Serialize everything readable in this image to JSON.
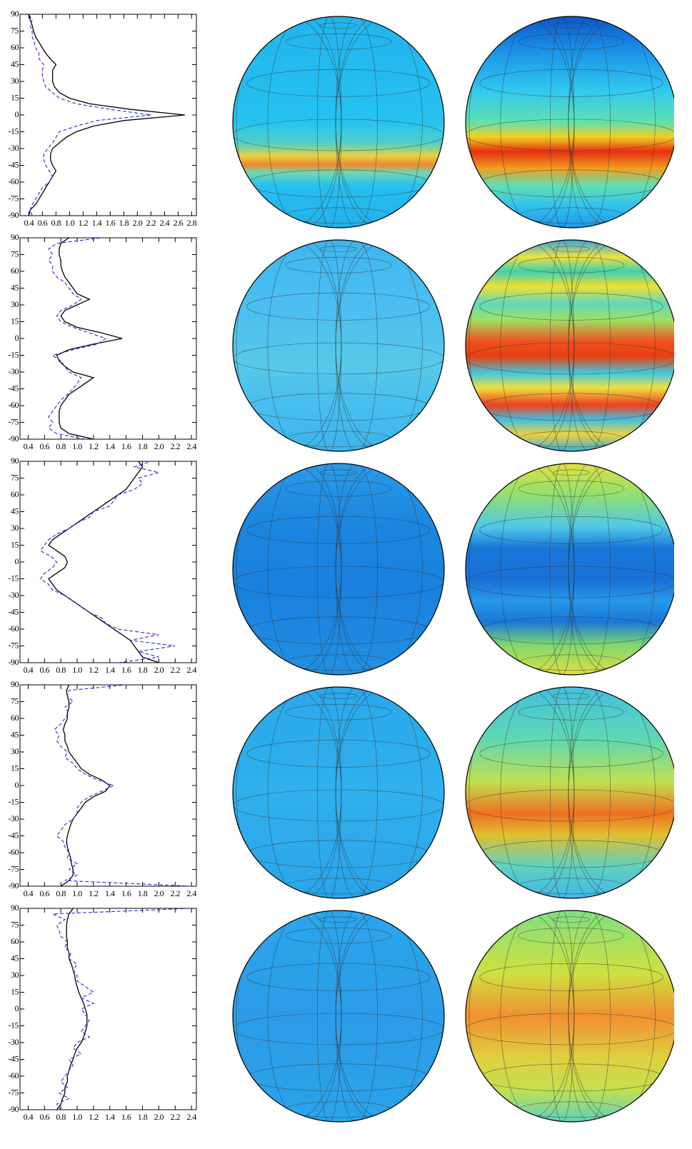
{
  "chart_data": [
    {
      "type": "line",
      "xlim": [
        0.27,
        2.87
      ],
      "ylim": [
        -90,
        90
      ],
      "xticks": [
        0.4,
        0.6,
        0.8,
        {
          "value": 1,
          "label": "1.0"
        },
        1.2,
        1.4,
        1.6,
        1.8,
        {
          "value": 2,
          "label": "2.0"
        },
        2.2,
        2.4,
        2.6,
        2.8
      ],
      "yticks": [
        -90,
        -75,
        -60,
        -45,
        -30,
        -15,
        0,
        15,
        30,
        45,
        60,
        75,
        90
      ],
      "y": [
        -90,
        -85,
        -80,
        -75,
        -70,
        -65,
        -60,
        -55,
        -50,
        -45,
        -40,
        -35,
        -30,
        -25,
        -20,
        -15,
        -10,
        -5,
        0,
        5,
        10,
        15,
        20,
        25,
        30,
        35,
        40,
        45,
        50,
        55,
        60,
        65,
        70,
        75,
        80,
        85,
        90
      ],
      "series": [
        {
          "color": "#000000",
          "linestyle": "solid",
          "values": [
            0.4,
            0.42,
            0.5,
            0.55,
            0.6,
            0.65,
            0.7,
            0.75,
            0.8,
            0.75,
            0.72,
            0.72,
            0.75,
            0.85,
            0.95,
            1.1,
            1.35,
            1.8,
            2.7,
            1.9,
            1.3,
            1.0,
            0.85,
            0.78,
            0.75,
            0.75,
            0.75,
            0.8,
            0.72,
            0.65,
            0.6,
            0.55,
            0.5,
            0.47,
            0.45,
            0.42,
            0.4
          ]
        },
        {
          "color": "#1f2fd0",
          "linestyle": "dashed",
          "values": [
            0.45,
            0.42,
            0.45,
            0.5,
            0.55,
            0.6,
            0.7,
            0.75,
            0.7,
            0.65,
            0.62,
            0.62,
            0.68,
            0.75,
            0.8,
            0.85,
            1.1,
            1.4,
            2.2,
            1.6,
            1.1,
            0.85,
            0.75,
            0.65,
            0.62,
            0.6,
            0.6,
            0.62,
            0.55,
            0.55,
            0.5,
            0.48,
            0.45,
            0.45,
            0.42,
            0.45,
            0.4
          ]
        }
      ]
    },
    {
      "type": "line",
      "xlim": [
        0.3,
        2.46
      ],
      "ylim": [
        -90,
        90
      ],
      "xticks": [
        0.4,
        0.6,
        0.8,
        {
          "value": 1,
          "label": "1.0"
        },
        1.2,
        1.4,
        1.6,
        1.8,
        {
          "value": 2,
          "label": "2.0"
        },
        2.2,
        2.4
      ],
      "yticks": [
        -90,
        -75,
        -60,
        -45,
        -30,
        -15,
        0,
        15,
        30,
        45,
        60,
        75,
        90
      ],
      "y": [
        -90,
        -85,
        -80,
        -75,
        -70,
        -65,
        -60,
        -55,
        -50,
        -45,
        -40,
        -35,
        -30,
        -25,
        -20,
        -15,
        -10,
        -5,
        0,
        5,
        10,
        15,
        20,
        25,
        30,
        35,
        40,
        45,
        50,
        55,
        60,
        65,
        70,
        75,
        80,
        85,
        90
      ],
      "series": [
        {
          "color": "#000000",
          "linestyle": "solid",
          "values": [
            1.2,
            0.9,
            0.8,
            0.78,
            0.78,
            0.78,
            0.8,
            0.85,
            0.9,
            1.0,
            1.1,
            1.2,
            0.95,
            0.85,
            0.78,
            0.75,
            0.9,
            1.2,
            1.55,
            1.3,
            1.0,
            0.85,
            0.8,
            0.85,
            1.0,
            1.15,
            1.0,
            0.95,
            0.9,
            0.85,
            0.82,
            0.8,
            0.8,
            0.78,
            0.78,
            0.8,
            0.9
          ]
        },
        {
          "color": "#1f2fd0",
          "linestyle": "dashed",
          "values": [
            1.1,
            0.75,
            0.65,
            0.7,
            0.65,
            0.7,
            0.75,
            0.8,
            0.88,
            0.95,
            1.0,
            1.05,
            0.9,
            0.85,
            0.8,
            0.7,
            0.95,
            1.25,
            1.35,
            1.15,
            0.95,
            0.8,
            0.75,
            0.8,
            0.95,
            1.05,
            0.95,
            0.9,
            0.85,
            0.75,
            0.7,
            0.7,
            0.65,
            0.7,
            0.65,
            0.75,
            1.3
          ]
        }
      ]
    },
    {
      "type": "line",
      "xlim": [
        0.3,
        2.46
      ],
      "ylim": [
        -90,
        90
      ],
      "xticks": [
        0.4,
        0.6,
        0.8,
        {
          "value": 1,
          "label": "1.0"
        },
        1.2,
        1.4,
        1.6,
        1.8,
        {
          "value": 2,
          "label": "2.0"
        },
        2.2,
        2.4
      ],
      "yticks": [
        -90,
        -75,
        -60,
        -45,
        -30,
        -15,
        0,
        15,
        30,
        45,
        60,
        75,
        90
      ],
      "y": [
        -90,
        -85,
        -80,
        -75,
        -70,
        -65,
        -60,
        -55,
        -50,
        -45,
        -40,
        -35,
        -30,
        -25,
        -20,
        -15,
        -10,
        -5,
        0,
        5,
        10,
        15,
        20,
        25,
        30,
        35,
        40,
        45,
        50,
        55,
        60,
        65,
        70,
        75,
        80,
        85,
        90
      ],
      "series": [
        {
          "color": "#000000",
          "linestyle": "solid",
          "values": [
            2.0,
            1.8,
            1.75,
            1.7,
            1.65,
            1.55,
            1.45,
            1.35,
            1.25,
            1.15,
            1.05,
            0.95,
            0.85,
            0.75,
            0.7,
            0.65,
            0.75,
            0.85,
            0.88,
            0.85,
            0.75,
            0.65,
            0.7,
            0.8,
            0.9,
            1.0,
            1.1,
            1.2,
            1.3,
            1.4,
            1.5,
            1.6,
            1.65,
            1.7,
            1.75,
            1.8,
            1.75
          ]
        },
        {
          "color": "#1f2fd0",
          "linestyle": "dashed",
          "values": [
            1.5,
            2.0,
            1.75,
            2.2,
            1.65,
            2.0,
            1.5,
            1.35,
            1.3,
            1.15,
            1.05,
            0.95,
            0.85,
            0.7,
            0.65,
            0.55,
            0.6,
            0.7,
            0.75,
            0.68,
            0.55,
            0.6,
            0.65,
            0.75,
            0.9,
            1.0,
            1.15,
            1.2,
            1.4,
            1.45,
            1.5,
            1.7,
            1.8,
            1.75,
            2.0,
            1.7,
            1.9
          ]
        }
      ]
    },
    {
      "type": "line",
      "xlim": [
        0.3,
        2.46
      ],
      "ylim": [
        -90,
        90
      ],
      "xticks": [
        0.4,
        0.6,
        0.8,
        {
          "value": 1,
          "label": "1.0"
        },
        1.2,
        1.4,
        1.6,
        1.8,
        {
          "value": 2,
          "label": "2.0"
        },
        2.2,
        2.4
      ],
      "yticks": [
        -90,
        -75,
        -60,
        -45,
        -30,
        -15,
        0,
        15,
        30,
        45,
        60,
        75,
        90
      ],
      "y": [
        -90,
        -85,
        -80,
        -75,
        -70,
        -65,
        -60,
        -55,
        -50,
        -45,
        -40,
        -35,
        -30,
        -25,
        -20,
        -15,
        -10,
        -5,
        0,
        5,
        10,
        15,
        20,
        25,
        30,
        35,
        40,
        45,
        50,
        55,
        60,
        65,
        70,
        75,
        80,
        85,
        90
      ],
      "series": [
        {
          "color": "#000000",
          "linestyle": "solid",
          "values": [
            0.8,
            0.9,
            0.95,
            0.95,
            0.93,
            0.92,
            0.9,
            0.88,
            0.87,
            0.88,
            0.9,
            0.92,
            0.95,
            1.0,
            1.05,
            1.1,
            1.2,
            1.35,
            1.4,
            1.3,
            1.15,
            1.05,
            1.0,
            0.95,
            0.9,
            0.88,
            0.85,
            0.85,
            0.83,
            0.85,
            0.88,
            0.88,
            0.9,
            0.9,
            0.88,
            0.87,
            0.9
          ]
        },
        {
          "color": "#1f2fd0",
          "linestyle": "dashed",
          "values": [
            2.4,
            0.85,
            1.0,
            0.9,
            1.0,
            0.88,
            0.9,
            0.85,
            0.83,
            0.75,
            0.8,
            0.85,
            0.95,
            1.0,
            1.0,
            1.05,
            1.15,
            1.3,
            1.45,
            1.25,
            1.1,
            1.0,
            0.95,
            0.85,
            0.88,
            0.8,
            0.75,
            0.78,
            0.72,
            0.8,
            0.85,
            0.9,
            0.85,
            0.95,
            0.88,
            0.9,
            1.6
          ]
        }
      ]
    },
    {
      "type": "line",
      "xlim": [
        0.3,
        2.46
      ],
      "ylim": [
        -90,
        90
      ],
      "xticks": [
        0.4,
        0.6,
        0.8,
        {
          "value": 1,
          "label": "1.0"
        },
        1.2,
        1.4,
        1.6,
        1.8,
        {
          "value": 2,
          "label": "2.0"
        },
        2.2,
        2.4
      ],
      "yticks": [
        -90,
        -75,
        -60,
        -45,
        -30,
        -15,
        0,
        15,
        30,
        45,
        60,
        75,
        90
      ],
      "y": [
        -90,
        -85,
        -80,
        -75,
        -70,
        -65,
        -60,
        -55,
        -50,
        -45,
        -40,
        -35,
        -30,
        -25,
        -20,
        -15,
        -10,
        -5,
        0,
        5,
        10,
        15,
        20,
        25,
        30,
        35,
        40,
        45,
        50,
        55,
        60,
        65,
        70,
        75,
        80,
        85,
        90
      ],
      "series": [
        {
          "color": "#000000",
          "linestyle": "solid",
          "values": [
            0.75,
            0.8,
            0.82,
            0.85,
            0.85,
            0.88,
            0.88,
            0.9,
            0.92,
            0.95,
            0.97,
            1.0,
            1.05,
            1.08,
            1.1,
            1.12,
            1.12,
            1.12,
            1.1,
            1.08,
            1.05,
            1.02,
            1.0,
            0.98,
            0.97,
            0.95,
            0.93,
            0.9,
            0.9,
            0.88,
            0.88,
            0.87,
            0.87,
            0.87,
            0.88,
            0.9,
            0.95
          ]
        },
        {
          "color": "#1f2fd0",
          "linestyle": "dashed",
          "values": [
            0.8,
            0.75,
            0.9,
            0.78,
            0.88,
            0.8,
            0.85,
            0.9,
            0.95,
            0.9,
            1.05,
            0.95,
            1.0,
            1.15,
            1.05,
            1.1,
            1.15,
            1.1,
            1.05,
            1.2,
            1.05,
            1.2,
            1.1,
            1.0,
            1.0,
            0.95,
            1.0,
            0.9,
            0.92,
            0.85,
            0.88,
            0.8,
            0.78,
            0.75,
            0.85,
            0.7,
            2.4
          ]
        }
      ]
    }
  ]
}
